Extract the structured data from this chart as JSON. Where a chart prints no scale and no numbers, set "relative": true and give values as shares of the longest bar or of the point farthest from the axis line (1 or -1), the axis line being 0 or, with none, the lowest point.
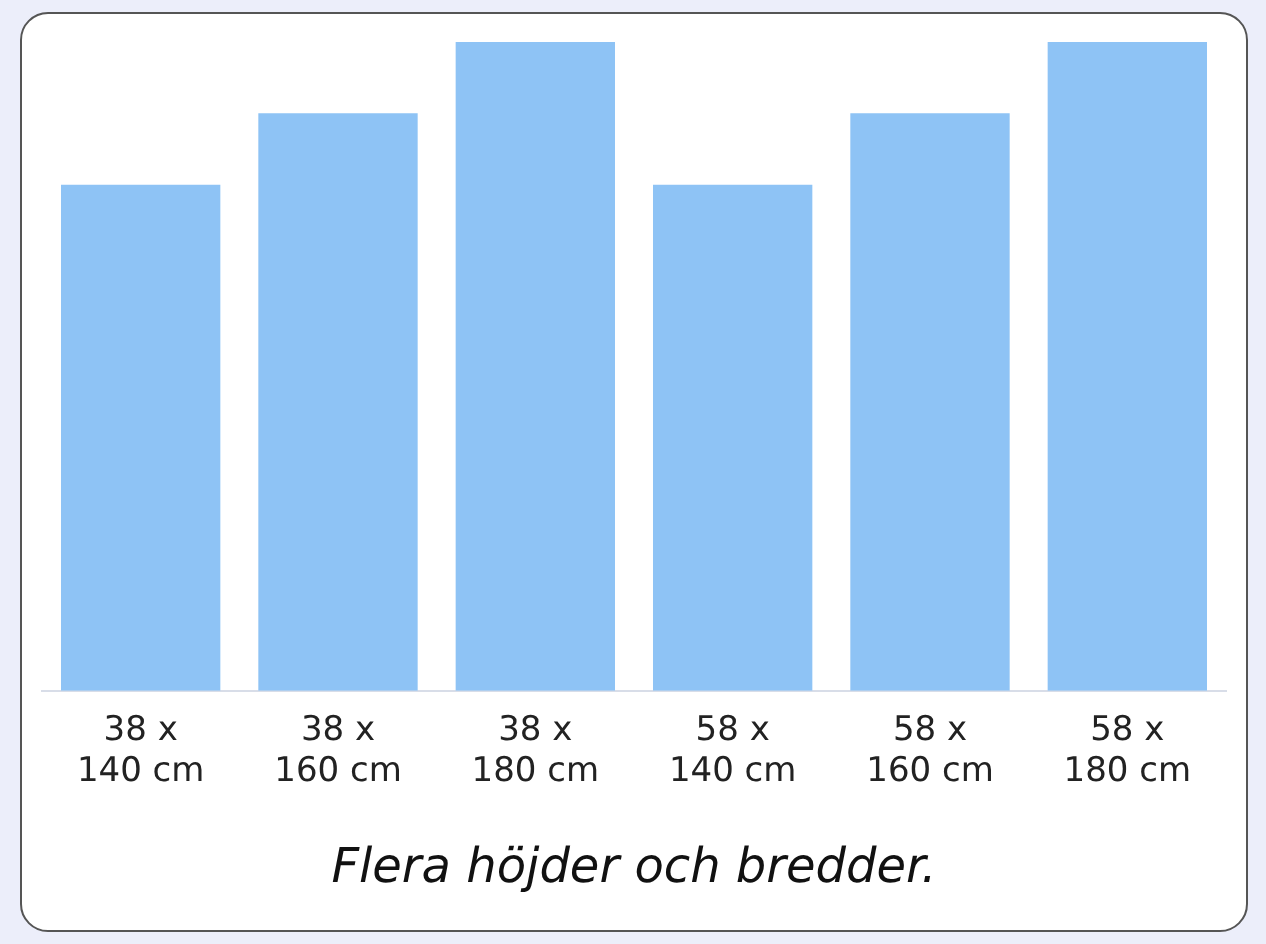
{
  "chart_data": {
    "type": "bar",
    "relative": true,
    "title": "Flera höjder och bredder.",
    "categories": [
      "38 x\n140 cm",
      "38 x\n160 cm",
      "38 x\n180 cm",
      "58 x\n140 cm",
      "58 x\n160 cm",
      "58 x\n180 cm"
    ],
    "values": [
      0.78,
      0.89,
      1,
      0.78,
      0.89,
      1
    ],
    "color": "#8ec3f5",
    "grid": false,
    "legend": false
  }
}
